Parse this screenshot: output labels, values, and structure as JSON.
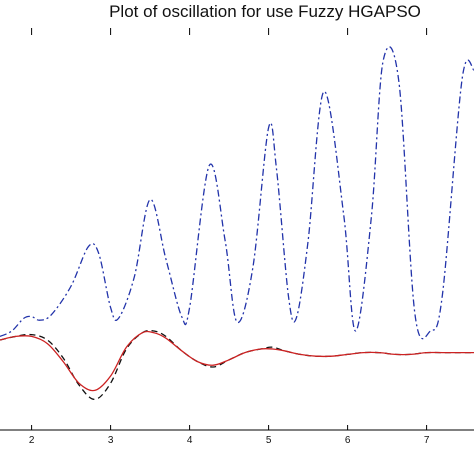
{
  "chart_data": {
    "type": "line",
    "title": "Plot of oscillation for use Fuzzy HGAPSO",
    "xlabel": "",
    "ylabel": "",
    "xlim": [
      1.6,
      7.6
    ],
    "x_ticks": [
      "2",
      "3",
      "4",
      "5",
      "6",
      "7"
    ],
    "grid": false,
    "colors": {
      "axes": "#000000",
      "blue": "#2233aa",
      "red": "#cc2222",
      "black": "#111111"
    },
    "series": [
      {
        "style": "blue dash-dot",
        "x": [
          1.6,
          1.75,
          1.9,
          2.0,
          2.1,
          2.25,
          2.5,
          2.72,
          2.85,
          3.0,
          3.1,
          3.3,
          3.5,
          3.7,
          3.9,
          4.0,
          4.25,
          4.45,
          4.6,
          4.8,
          5.0,
          5.1,
          5.25,
          5.35,
          5.5,
          5.7,
          5.95,
          6.1,
          6.3,
          6.45,
          6.65,
          6.85,
          7.05,
          7.2,
          7.45,
          7.6
        ],
        "y": [
          0.02,
          0.05,
          0.12,
          0.13,
          0.11,
          0.14,
          0.3,
          0.52,
          0.48,
          0.18,
          0.12,
          0.35,
          0.78,
          0.45,
          0.13,
          0.18,
          0.97,
          0.55,
          0.1,
          0.4,
          1.18,
          0.95,
          0.25,
          0.12,
          0.55,
          1.38,
          0.7,
          0.05,
          0.68,
          1.55,
          1.43,
          0.15,
          0.05,
          0.25,
          1.45,
          1.5
        ]
      },
      {
        "style": "black dashed",
        "x": [
          1.6,
          1.8,
          2.0,
          2.2,
          2.4,
          2.6,
          2.8,
          3.0,
          3.2,
          3.4,
          3.55,
          3.7,
          3.9,
          4.1,
          4.3,
          4.5,
          4.7,
          4.9,
          5.05,
          5.2,
          5.4,
          5.6,
          5.8,
          6.0,
          6.2,
          6.4,
          6.6,
          6.8,
          7.0,
          7.2,
          7.4,
          7.6
        ],
        "y": [
          0.0,
          0.02,
          0.03,
          0.0,
          -0.1,
          -0.25,
          -0.33,
          -0.24,
          -0.05,
          0.04,
          0.05,
          0.02,
          -0.06,
          -0.12,
          -0.15,
          -0.11,
          -0.07,
          -0.05,
          -0.04,
          -0.06,
          -0.08,
          -0.09,
          -0.09,
          -0.08,
          -0.07,
          -0.07,
          -0.08,
          -0.08,
          -0.07,
          -0.07,
          -0.07,
          -0.07
        ]
      },
      {
        "style": "red solid",
        "x": [
          1.6,
          1.8,
          2.0,
          2.2,
          2.4,
          2.6,
          2.8,
          3.0,
          3.2,
          3.4,
          3.55,
          3.7,
          3.9,
          4.1,
          4.3,
          4.5,
          4.7,
          4.9,
          5.05,
          5.2,
          5.4,
          5.6,
          5.8,
          6.0,
          6.2,
          6.4,
          6.6,
          6.8,
          7.0,
          7.2,
          7.4,
          7.6
        ],
        "y": [
          0.0,
          0.02,
          0.02,
          -0.02,
          -0.12,
          -0.24,
          -0.28,
          -0.2,
          -0.04,
          0.04,
          0.04,
          0.01,
          -0.06,
          -0.12,
          -0.14,
          -0.11,
          -0.07,
          -0.05,
          -0.05,
          -0.06,
          -0.08,
          -0.09,
          -0.09,
          -0.08,
          -0.07,
          -0.07,
          -0.08,
          -0.08,
          -0.07,
          -0.07,
          -0.07,
          -0.07
        ]
      }
    ]
  }
}
